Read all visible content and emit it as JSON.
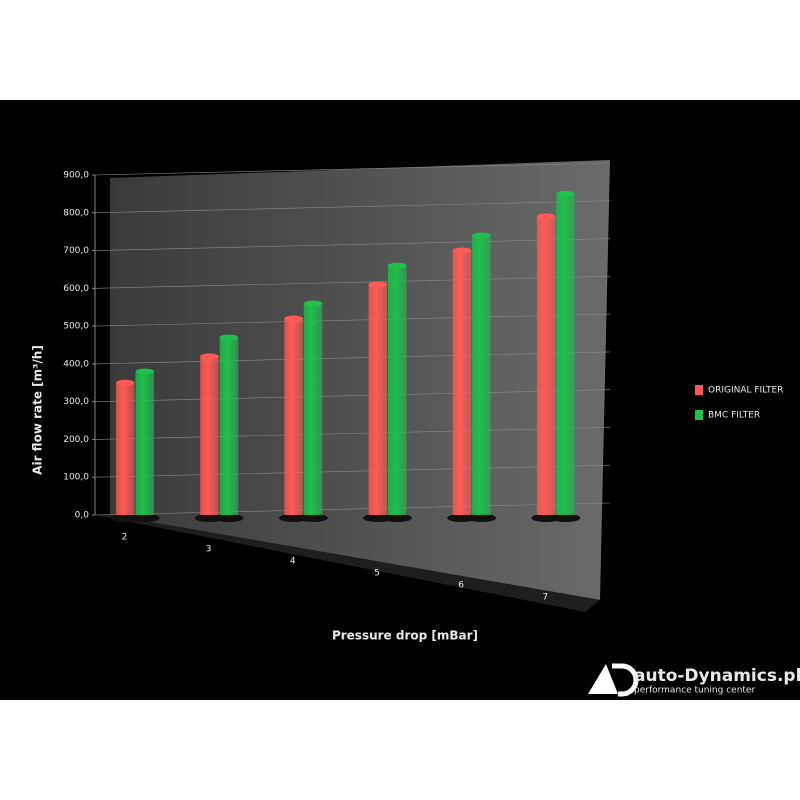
{
  "chart_data": {
    "type": "bar",
    "x_label": "Pressure drop [mBar]",
    "y_label": "Air flow rate [m³/h]",
    "categories": [
      "2",
      "3",
      "4",
      "5",
      "6",
      "7"
    ],
    "series": [
      {
        "name": "ORIGINAL FILTER",
        "color": "#ff5a55",
        "values": [
          350,
          420,
          520,
          610,
          700,
          790
        ]
      },
      {
        "name": "BMC FILTER",
        "color": "#1fc04c",
        "values": [
          380,
          470,
          560,
          660,
          740,
          850
        ]
      }
    ],
    "ylim": [
      0,
      900
    ],
    "yticks": [
      {
        "value": 0,
        "label": "0,0"
      },
      {
        "value": 100,
        "label": "100,0"
      },
      {
        "value": 200,
        "label": "200,0"
      },
      {
        "value": 300,
        "label": "300,0"
      },
      {
        "value": 400,
        "label": "400,0"
      },
      {
        "value": 500,
        "label": "500,0"
      },
      {
        "value": 600,
        "label": "600,0"
      },
      {
        "value": 700,
        "label": "700,0"
      },
      {
        "value": 800,
        "label": "800,0"
      },
      {
        "value": 900,
        "label": "900,0"
      }
    ],
    "grid": true,
    "legend": "right"
  },
  "logo": {
    "title": "auto-Dynamics.pl",
    "subtitle": "performance tuning center"
  }
}
